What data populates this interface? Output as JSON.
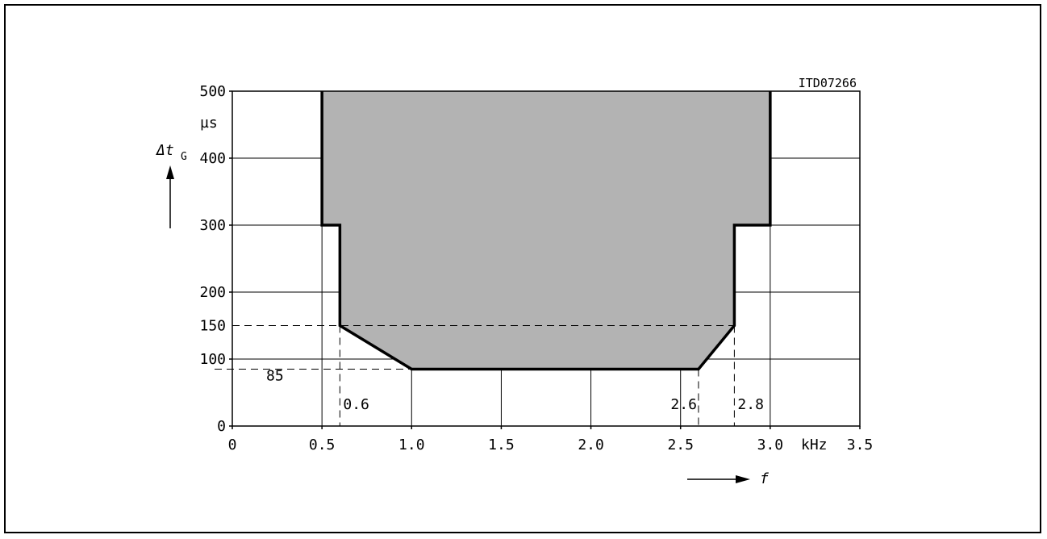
{
  "figure_code": "ITD07266",
  "chart_data": {
    "type": "area",
    "xlabel": "f",
    "x_unit": "kHz",
    "ylabel": "Δt",
    "ylabel_sub": "G",
    "y_unit": "µs",
    "xlim": [
      0,
      3.5
    ],
    "ylim": [
      0,
      500
    ],
    "x_ticks": [
      0,
      0.5,
      1.0,
      1.5,
      2.0,
      2.5,
      3.0,
      3.5
    ],
    "x_tick_labels": [
      "0",
      "0.5",
      "1.0",
      "1.5",
      "2.0",
      "2.5",
      "3.0",
      "3.5"
    ],
    "y_ticks": [
      0,
      100,
      200,
      300,
      400,
      500
    ],
    "y_tick_labels": [
      "0",
      "100",
      "200",
      "300",
      "400",
      "500"
    ],
    "grid": true,
    "fill_color": "#b3b3b3",
    "region": {
      "x": [
        0.5,
        0.5,
        0.6,
        0.6,
        1.0,
        2.6,
        2.8,
        2.8,
        3.0,
        3.0
      ],
      "y": [
        500,
        300,
        300,
        150,
        85,
        85,
        150,
        300,
        300,
        500
      ]
    },
    "annotations": [
      {
        "label": "85",
        "x": 0,
        "y": 85
      },
      {
        "label": "150",
        "x": 0,
        "y": 150
      },
      {
        "label": "0.6",
        "x": 0.6,
        "y": 0
      },
      {
        "label": "2.6",
        "x": 2.6,
        "y": 0
      },
      {
        "label": "2.8",
        "x": 2.8,
        "y": 0
      }
    ]
  }
}
